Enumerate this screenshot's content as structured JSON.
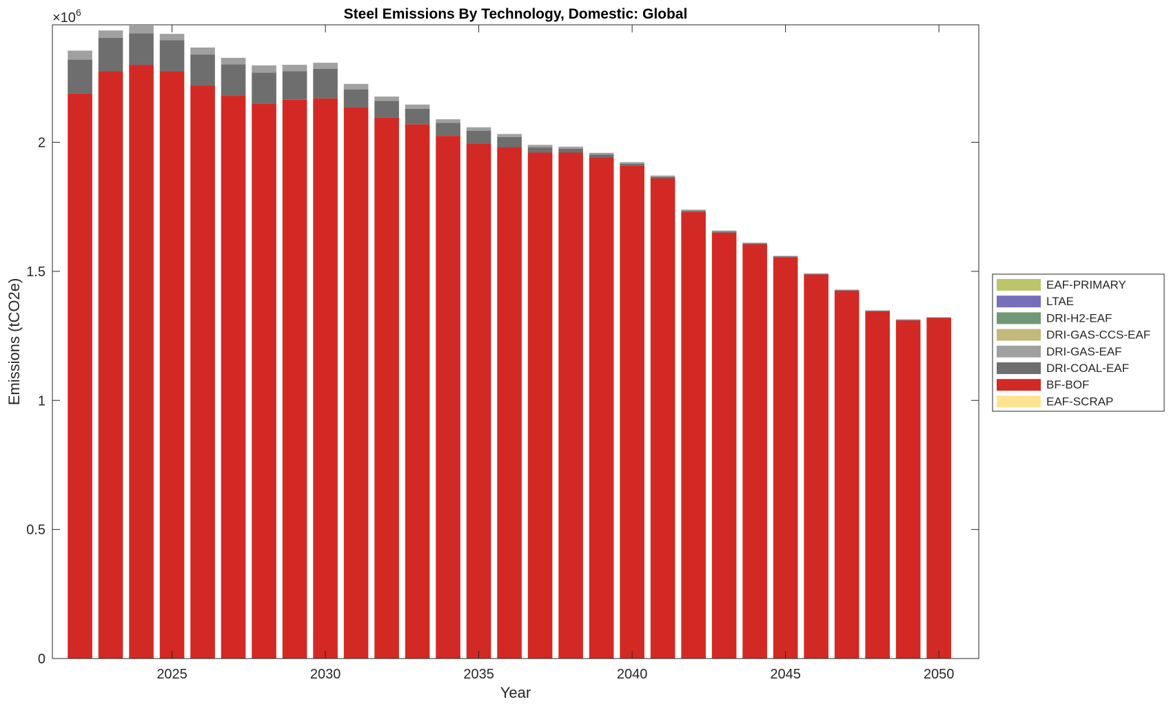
{
  "chart_data": {
    "type": "bar",
    "stacked": true,
    "title": "Steel Emissions By Technology, Domestic: Global",
    "xlabel": "Year",
    "ylabel": "Emissions (tCO2e)",
    "y_multiplier_label": "×10",
    "y_multiplier_exponent": "6",
    "x": [
      2022,
      2023,
      2024,
      2025,
      2026,
      2027,
      2028,
      2029,
      2030,
      2031,
      2032,
      2033,
      2034,
      2035,
      2036,
      2037,
      2038,
      2039,
      2040,
      2041,
      2042,
      2043,
      2044,
      2045,
      2046,
      2047,
      2048,
      2049,
      2050
    ],
    "xlim": [
      2021.1,
      2051.3
    ],
    "ylim": [
      0,
      2.455
    ],
    "x_ticks": [
      2025,
      2030,
      2035,
      2040,
      2045,
      2050
    ],
    "y_ticks": [
      0,
      0.5,
      1,
      1.5,
      2
    ],
    "y_tick_labels": [
      "0",
      "0.5",
      "1",
      "1.5",
      "2"
    ],
    "grid": false,
    "legend_position": "right",
    "stack_order": [
      "EAF-SCRAP",
      "BF-BOF",
      "DRI-COAL-EAF",
      "DRI-GAS-EAF",
      "DRI-GAS-CCS-EAF",
      "DRI-H2-EAF",
      "LTAE",
      "EAF-PRIMARY"
    ],
    "series": [
      {
        "name": "EAF-PRIMARY",
        "color": "#bcc56a",
        "values": [
          0,
          0,
          0,
          0,
          0,
          0,
          0,
          0,
          0,
          0,
          0,
          0,
          0,
          0,
          0,
          0,
          0,
          0,
          0,
          0,
          0,
          0,
          0,
          0,
          0,
          0,
          0,
          0,
          0
        ]
      },
      {
        "name": "LTAE",
        "color": "#7570b9",
        "values": [
          0,
          0,
          0,
          0,
          0,
          0,
          0,
          0,
          0,
          0,
          0,
          0,
          0,
          0,
          0,
          0,
          0,
          0,
          0,
          0,
          0,
          0,
          0,
          0,
          0,
          0,
          0,
          0,
          0
        ]
      },
      {
        "name": "DRI-H2-EAF",
        "color": "#719876",
        "values": [
          0,
          0,
          0,
          0,
          0,
          0,
          0,
          0,
          0,
          0,
          0,
          0,
          0,
          0,
          0,
          0,
          0,
          0,
          0,
          0,
          0,
          0,
          0,
          0,
          0,
          0,
          0,
          0,
          0
        ]
      },
      {
        "name": "DRI-GAS-CCS-EAF",
        "color": "#c2b97a",
        "values": [
          0,
          0,
          0,
          0,
          0,
          0,
          0,
          0,
          0,
          0,
          0,
          0,
          0,
          0,
          0,
          0,
          0,
          0,
          0,
          0,
          0,
          0,
          0,
          0,
          0,
          0,
          0,
          0,
          0
        ]
      },
      {
        "name": "DRI-GAS-EAF",
        "color": "#a0a0a0",
        "values": [
          0.035,
          0.028,
          0.03,
          0.025,
          0.027,
          0.025,
          0.028,
          0.025,
          0.023,
          0.021,
          0.017,
          0.016,
          0.014,
          0.013,
          0.012,
          0.01,
          0.008,
          0.007,
          0.006,
          0.005,
          0.004,
          0.004,
          0.003,
          0.002,
          0.002,
          0.002,
          0.002,
          0.002,
          0.001
        ]
      },
      {
        "name": "DRI-COAL-EAF",
        "color": "#6e6e6e",
        "values": [
          0.13,
          0.13,
          0.122,
          0.12,
          0.12,
          0.122,
          0.12,
          0.11,
          0.115,
          0.07,
          0.065,
          0.06,
          0.05,
          0.05,
          0.04,
          0.02,
          0.015,
          0.012,
          0.007,
          0.006,
          0.005,
          0.004,
          0.003,
          0.003,
          0.002,
          0.002,
          0.002,
          0.002,
          0.001
        ]
      },
      {
        "name": "BF-BOF",
        "color": "#d32925",
        "values": [
          2.19,
          2.275,
          2.3,
          2.275,
          2.22,
          2.18,
          2.15,
          2.165,
          2.17,
          2.135,
          2.095,
          2.07,
          2.025,
          1.995,
          1.98,
          1.96,
          1.96,
          1.94,
          1.91,
          1.86,
          1.73,
          1.65,
          1.605,
          1.555,
          1.488,
          1.425,
          1.345,
          1.31,
          1.32
        ]
      },
      {
        "name": "EAF-SCRAP",
        "color": "#fde492",
        "values": [
          0,
          0,
          0,
          0,
          0,
          0,
          0,
          0,
          0,
          0,
          0,
          0,
          0,
          0,
          0,
          0,
          0,
          0,
          0,
          0,
          0,
          0,
          0,
          0,
          0,
          0,
          0,
          0,
          0
        ]
      }
    ]
  }
}
